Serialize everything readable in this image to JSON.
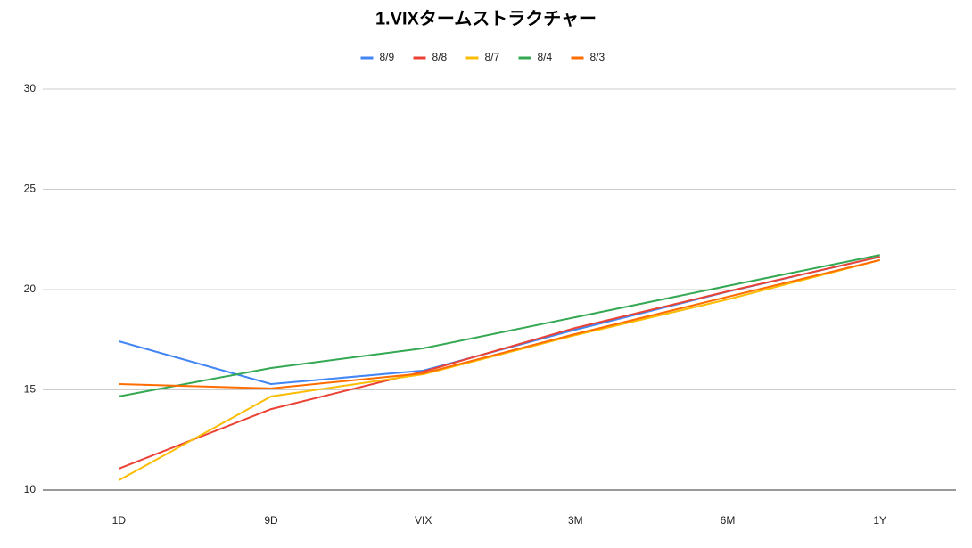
{
  "chart_data": {
    "type": "line",
    "title": "1.VIXタームストラクチャー",
    "categories": [
      "1D",
      "9D",
      "VIX",
      "3M",
      "6M",
      "1Y"
    ],
    "series": [
      {
        "name": "8/9",
        "color": "#4285f4",
        "values": [
          17.42,
          15.29,
          15.96,
          18.0,
          19.9,
          21.64
        ]
      },
      {
        "name": "8/8",
        "color": "#ea4335",
        "values": [
          11.07,
          14.04,
          15.91,
          18.09,
          19.91,
          21.64
        ]
      },
      {
        "name": "8/7",
        "color": "#fbbc04",
        "values": [
          10.49,
          14.67,
          15.78,
          17.73,
          19.51,
          21.47
        ]
      },
      {
        "name": "8/4",
        "color": "#34a853",
        "values": [
          14.67,
          16.09,
          17.07,
          18.62,
          20.18,
          21.73
        ]
      },
      {
        "name": "8/3",
        "color": "#ff6d01",
        "values": [
          15.29,
          15.07,
          15.82,
          17.78,
          19.64,
          21.47
        ]
      }
    ],
    "ylim": [
      10,
      30
    ],
    "yticks": [
      10,
      15,
      20,
      25,
      30
    ],
    "grid": true,
    "legend": "top"
  }
}
